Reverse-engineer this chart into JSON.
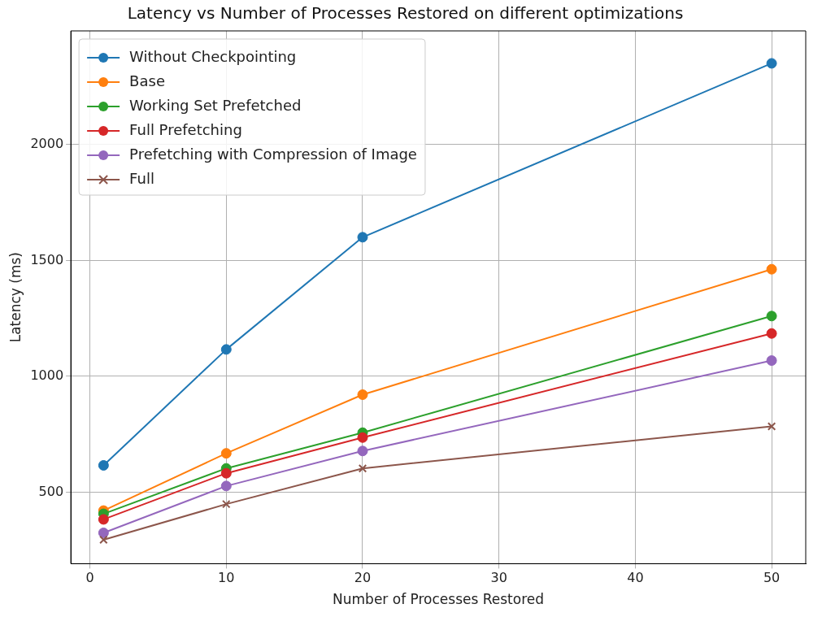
{
  "chart_data": {
    "type": "line",
    "title": "Latency vs Number of Processes Restored on different optimizations",
    "xlabel": "Number of Processes Restored",
    "ylabel": "Latency (ms)",
    "x": [
      1,
      10,
      20,
      50
    ],
    "xlim": [
      -1.4,
      52.5
    ],
    "xticks": [
      0,
      10,
      20,
      30,
      40,
      50
    ],
    "ylim": [
      192,
      2490
    ],
    "yticks": [
      500,
      1000,
      1500,
      2000
    ],
    "grid": true,
    "legend": "top left",
    "marker": "circle",
    "line_style": "solid",
    "series": [
      {
        "name": "Without Checkpointing",
        "color": "#1f77b4",
        "values": [
          616,
          1116,
          1600,
          2350
        ]
      },
      {
        "name": "Base",
        "color": "#ff7f0e",
        "values": [
          421,
          668,
          921,
          1462
        ]
      },
      {
        "name": "Working Set Prefetched",
        "color": "#2ca02c",
        "values": [
          407,
          603,
          757,
          1260
        ]
      },
      {
        "name": "Full Prefetching",
        "color": "#d62728",
        "values": [
          383,
          582,
          736,
          1185
        ]
      },
      {
        "name": "Prefetching with Compression of Image",
        "color": "#9467bd",
        "values": [
          325,
          527,
          678,
          1068
        ]
      },
      {
        "name": "Full",
        "color": "#8c564b",
        "values": [
          295,
          449,
          603,
          784
        ],
        "marker": "cross"
      }
    ]
  }
}
